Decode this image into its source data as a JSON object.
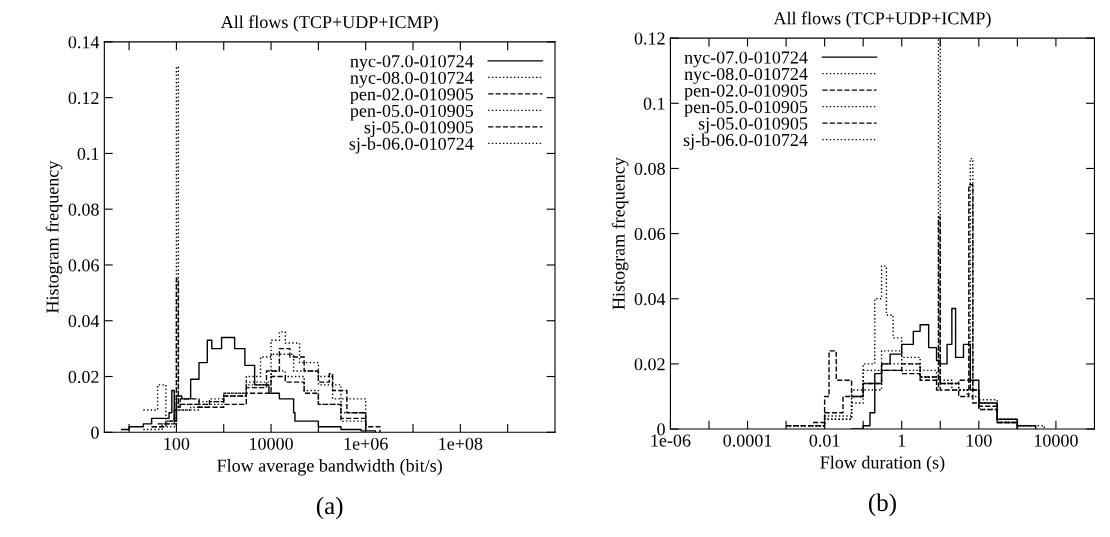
{
  "chart_data": [
    {
      "type": "step",
      "title": "All flows (TCP+UDP+ICMP)",
      "xlabel": "Flow average bandwidth (bit/s)",
      "ylabel": "Histogram frequency",
      "log": "x",
      "legend": "top right",
      "grid": false,
      "xlim": [
        3,
        10000000000
      ],
      "xticks": [
        {
          "value": 10,
          "label": null
        },
        100,
        {
          "value": 1000,
          "label": null
        },
        10000,
        {
          "value": 100000,
          "label": null
        },
        {
          "value": 1000000,
          "label": "1e+06"
        },
        {
          "value": 10000000,
          "label": null
        },
        {
          "value": 100000000,
          "label": "1e+08"
        },
        {
          "value": 1000000000,
          "label": null
        }
      ],
      "ylim": [
        0,
        0.14
      ],
      "yticks": [
        0,
        0.02,
        0.04,
        0.06,
        0.08,
        0.1,
        0.12,
        0.14
      ],
      "annotations": [
        "(a)"
      ],
      "series": [
        {
          "name": "nyc-07.0-010724",
          "color": "#000000",
          "line_style": "solid",
          "x": [
            7,
            10,
            20,
            30,
            50,
            70,
            80,
            90,
            100,
            130,
            200,
            300,
            450,
            560,
            900,
            1700,
            2800,
            4500,
            9000,
            15000,
            24000,
            30000,
            32000,
            100000,
            300000,
            800000,
            1600000
          ],
          "values": [
            0.001,
            0.002,
            0.003,
            0.005,
            0.005,
            0.007,
            0.015,
            0.004,
            0.013,
            0.012,
            0.019,
            0.025,
            0.033,
            0.03,
            0.034,
            0.03,
            0.024,
            0.017,
            0.014,
            0.012,
            0.012,
            0.007,
            0.004,
            0.002,
            0.001,
            0.0005,
            0
          ]
        },
        {
          "name": "nyc-08.0-010724",
          "color": "#000000",
          "line_style": "dotted",
          "x": [
            20,
            50,
            90,
            100,
            110,
            200,
            500,
            1000,
            3000,
            10000,
            20000,
            50000,
            100000,
            300000,
            1000000
          ],
          "values": [
            0.001,
            0.003,
            0.005,
            0.131,
            0.008,
            0.009,
            0.012,
            0.014,
            0.018,
            0.022,
            0.02,
            0.015,
            0.01,
            0.004,
            0.001
          ]
        },
        {
          "name": "pen-02.0-010905",
          "color": "#000000",
          "line_style": "dashed",
          "x": [
            30,
            60,
            90,
            100,
            110,
            200,
            500,
            1000,
            3000,
            8000,
            15000,
            25000,
            50000,
            100000,
            170000,
            200000,
            400000,
            1000000,
            2000000
          ],
          "values": [
            0.002,
            0.004,
            0.008,
            0.055,
            0.01,
            0.01,
            0.011,
            0.013,
            0.016,
            0.022,
            0.03,
            0.027,
            0.022,
            0.018,
            0.021,
            0.015,
            0.007,
            0.002,
            0
          ]
        },
        {
          "name": "pen-05.0-010905",
          "color": "#000000",
          "line_style": "dotted",
          "x": [
            30,
            100,
            300,
            1000,
            3000,
            6000,
            10000,
            15000,
            20000,
            40000,
            100000,
            300000,
            1000000
          ],
          "values": [
            0.002,
            0.008,
            0.01,
            0.014,
            0.02,
            0.027,
            0.033,
            0.036,
            0.032,
            0.025,
            0.017,
            0.007,
            0.001
          ]
        },
        {
          "name": "sj-05.0-010905",
          "color": "#000000",
          "line_style": "dashed",
          "x": [
            40,
            100,
            120,
            300,
            1000,
            3000,
            10000,
            20000,
            50000,
            100000,
            300000,
            1000000
          ],
          "values": [
            0.003,
            0.009,
            0.012,
            0.009,
            0.01,
            0.014,
            0.02,
            0.018,
            0.014,
            0.01,
            0.005,
            0.001
          ]
        },
        {
          "name": "sj-b-06.0-010724",
          "color": "#000000",
          "line_style": "dotted",
          "x": [
            20,
            40,
            60,
            100,
            300,
            1000,
            3000,
            10000,
            30000,
            100000,
            200000,
            1000000
          ],
          "values": [
            0.008,
            0.017,
            0.004,
            0.01,
            0.011,
            0.013,
            0.017,
            0.028,
            0.022,
            0.02,
            0.012,
            0.002
          ]
        }
      ]
    },
    {
      "type": "step",
      "title": "All flows (TCP+UDP+ICMP)",
      "xlabel": "Flow duration (s)",
      "ylabel": "Histogram frequency",
      "log": "x",
      "legend": "top left",
      "grid": false,
      "xlim": [
        1e-06,
        100000
      ],
      "xticks": [
        {
          "value": 1e-06,
          "label": "1e-06"
        },
        {
          "value": 1e-05,
          "label": null
        },
        0.0001,
        {
          "value": 0.001,
          "label": null
        },
        0.01,
        {
          "value": 0.1,
          "label": null
        },
        1,
        {
          "value": 10,
          "label": null
        },
        100,
        {
          "value": 1000,
          "label": null
        },
        10000
      ],
      "ylim": [
        0,
        0.12
      ],
      "yticks": [
        0,
        0.02,
        0.04,
        0.06,
        0.08,
        0.1,
        0.12
      ],
      "annotations": [
        "(b)"
      ],
      "series": [
        {
          "name": "nyc-07.0-010724",
          "color": "#000000",
          "line_style": "solid",
          "x": [
            0.05,
            0.1,
            0.15,
            0.2,
            0.3,
            0.5,
            1,
            2,
            3,
            5,
            8,
            10,
            15,
            20,
            25,
            40,
            60,
            100,
            300,
            1000,
            3000
          ],
          "values": [
            0,
            0.001,
            0.005,
            0.017,
            0.02,
            0.023,
            0.026,
            0.03,
            0.032,
            0.025,
            0.021,
            0.02,
            0.026,
            0.037,
            0.022,
            0.026,
            0.015,
            0.008,
            0.003,
            0.001,
            0
          ]
        },
        {
          "name": "nyc-08.0-010724",
          "color": "#000000",
          "line_style": "dotted",
          "x": [
            0.001,
            0.01,
            0.05,
            0.1,
            0.2,
            0.3,
            0.4,
            0.6,
            1,
            3,
            8,
            9,
            10,
            20,
            50,
            100,
            300,
            1000
          ],
          "values": [
            0.001,
            0.003,
            0.01,
            0.02,
            0.04,
            0.05,
            0.035,
            0.028,
            0.022,
            0.018,
            0.015,
            0.12,
            0.015,
            0.012,
            0.01,
            0.006,
            0.002,
            0
          ]
        },
        {
          "name": "pen-02.0-010905",
          "color": "#000000",
          "line_style": "dashed",
          "x": [
            0.001,
            0.01,
            0.03,
            0.1,
            0.3,
            1,
            3,
            8,
            9,
            10,
            30,
            60,
            100,
            300,
            1000
          ],
          "values": [
            0.001,
            0.005,
            0.01,
            0.014,
            0.018,
            0.02,
            0.016,
            0.012,
            0.065,
            0.014,
            0.015,
            0.012,
            0.007,
            0.002,
            0
          ]
        },
        {
          "name": "pen-05.0-010905",
          "color": "#000000",
          "line_style": "dotted",
          "x": [
            0.001,
            0.01,
            0.05,
            0.1,
            0.3,
            1,
            3,
            10,
            30,
            60,
            70,
            100,
            300,
            1000
          ],
          "values": [
            0.001,
            0.004,
            0.012,
            0.018,
            0.024,
            0.02,
            0.016,
            0.014,
            0.012,
            0.083,
            0.012,
            0.008,
            0.002,
            0
          ]
        },
        {
          "name": "sj-05.0-010905",
          "color": "#000000",
          "line_style": "dashed",
          "x": [
            0.005,
            0.01,
            0.013,
            0.02,
            0.05,
            0.1,
            0.3,
            1,
            3,
            10,
            30,
            55,
            60,
            70,
            100,
            300,
            1000
          ],
          "values": [
            0.002,
            0.01,
            0.024,
            0.015,
            0.01,
            0.014,
            0.018,
            0.017,
            0.015,
            0.012,
            0.01,
            0.075,
            0.075,
            0.008,
            0.006,
            0.002,
            0
          ]
        },
        {
          "name": "sj-b-06.0-010724",
          "color": "#000000",
          "line_style": "dotted",
          "x": [
            0.001,
            0.01,
            0.05,
            0.1,
            0.3,
            1,
            3,
            10,
            30,
            100,
            300,
            1000,
            5000
          ],
          "values": [
            0.001,
            0.003,
            0.008,
            0.012,
            0.02,
            0.018,
            0.016,
            0.014,
            0.012,
            0.009,
            0.003,
            0.001,
            0
          ]
        }
      ]
    }
  ]
}
